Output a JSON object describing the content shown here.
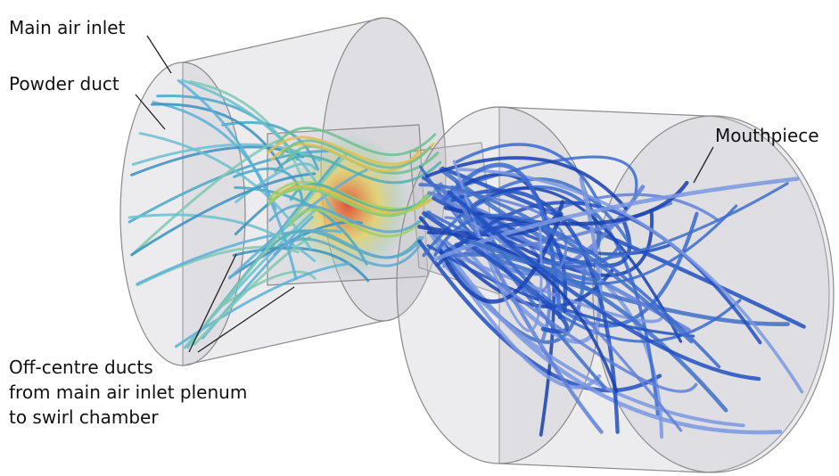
{
  "labels": {
    "main_air_inlet": "Main air inlet",
    "powder_duct": "Powder duct",
    "mouthpiece": "Mouthpiece",
    "off_centre_ducts": [
      "Off-centre ducts",
      "from main air inlet plenum",
      "to swirl chamber"
    ]
  }
}
